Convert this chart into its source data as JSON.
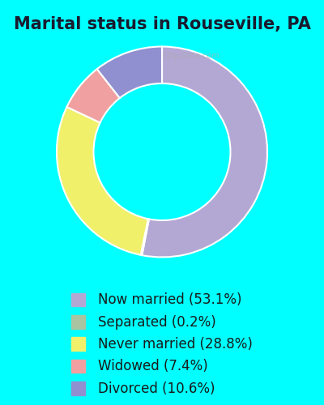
{
  "title": "Marital status in Rouseville, PA",
  "slices": [
    {
      "label": "Now married (53.1%)",
      "value": 53.1,
      "color": "#b3a8d4"
    },
    {
      "label": "Separated (0.2%)",
      "value": 0.2,
      "color": "#a8c4a0"
    },
    {
      "label": "Never married (28.8%)",
      "value": 28.8,
      "color": "#f0f06a"
    },
    {
      "label": "Widowed (7.4%)",
      "value": 7.4,
      "color": "#f0a0a0"
    },
    {
      "label": "Divorced (10.6%)",
      "value": 10.6,
      "color": "#9090d0"
    }
  ],
  "bg_top": "#00FFFF",
  "bg_chart": "#d8ecd8",
  "bg_legend": "#00FFFF",
  "title_color": "#1a1a2e",
  "legend_text_color": "#1a1a1a",
  "title_fontsize": 15,
  "legend_fontsize": 12,
  "donut_width": 0.35,
  "start_angle": 90
}
